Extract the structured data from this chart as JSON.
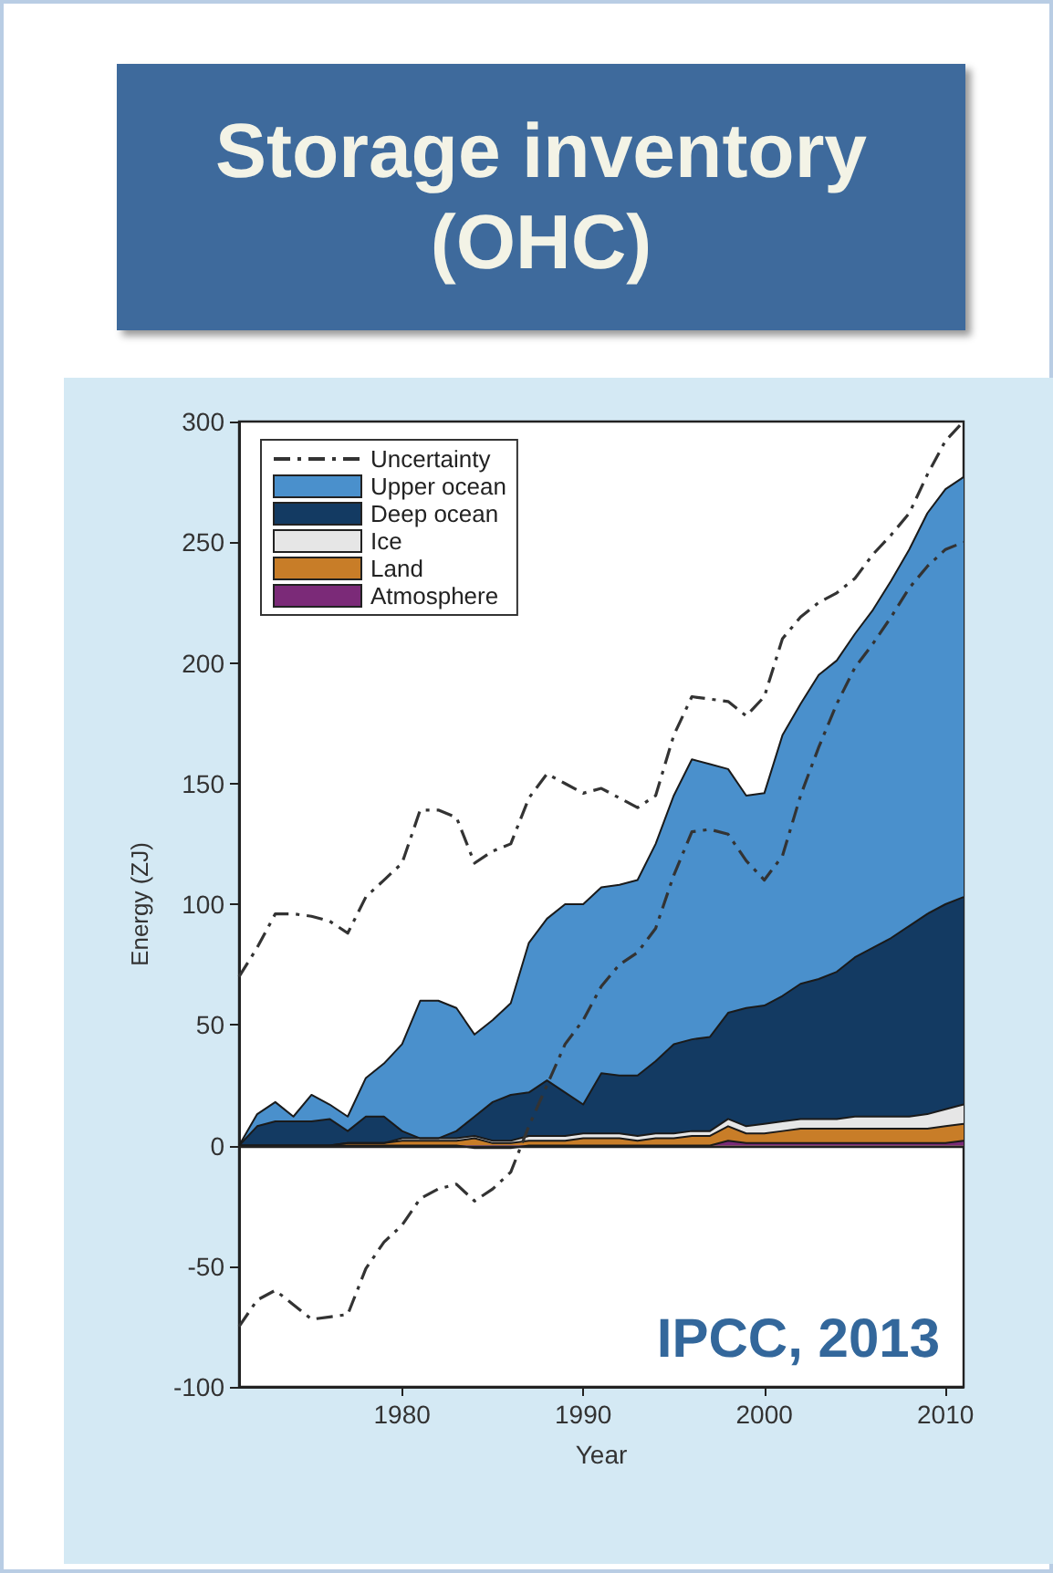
{
  "chart_data": {
    "type": "area",
    "title": "Storage inventory (OHC)",
    "xlabel": "Year",
    "ylabel": "Energy (ZJ)",
    "stacked": true,
    "grid": false,
    "legend": "top left",
    "marker": "none",
    "annotations": [
      "IPCC, 2013"
    ],
    "x": [
      1971,
      1972,
      1973,
      1974,
      1975,
      1976,
      1977,
      1978,
      1979,
      1980,
      1981,
      1982,
      1983,
      1984,
      1985,
      1986,
      1987,
      1988,
      1989,
      1990,
      1991,
      1992,
      1993,
      1994,
      1995,
      1996,
      1997,
      1998,
      1999,
      2000,
      2001,
      2002,
      2003,
      2004,
      2005,
      2006,
      2007,
      2008,
      2009,
      2010,
      2011
    ],
    "xlim": [
      1971,
      2011
    ],
    "xticks": [
      1980,
      1990,
      2000,
      2010
    ],
    "ylim": [
      -100,
      300
    ],
    "yticks": [
      -100,
      -50,
      0,
      50,
      100,
      150,
      200,
      250,
      300
    ],
    "ref_lines": [
      {
        "axis": "y",
        "value": 0,
        "color": "#222222"
      }
    ],
    "series": [
      {
        "name": "Atmosphere",
        "color": "#7b2a78",
        "values": [
          0,
          0,
          0,
          0,
          0,
          0,
          0,
          0,
          0,
          0,
          0,
          0,
          0,
          -1,
          -1,
          -1,
          0,
          0,
          0,
          0,
          0,
          0,
          0,
          0,
          0,
          0,
          0,
          2,
          1,
          1,
          1,
          1,
          1,
          1,
          1,
          1,
          1,
          1,
          1,
          1,
          2
        ]
      },
      {
        "name": "Land",
        "color": "#c87d28",
        "values": [
          0,
          0,
          0,
          0,
          0,
          0,
          1,
          1,
          1,
          2,
          2,
          2,
          2,
          3,
          1,
          1,
          2,
          2,
          2,
          3,
          3,
          3,
          2,
          3,
          3,
          4,
          4,
          6,
          4,
          4,
          5,
          6,
          6,
          6,
          6,
          6,
          6,
          6,
          6,
          7,
          7
        ]
      },
      {
        "name": "Ice",
        "color": "#e6e6e6",
        "values": [
          0,
          0,
          0,
          0,
          0,
          0,
          0,
          0,
          0,
          1,
          1,
          1,
          1,
          1,
          1,
          1,
          2,
          2,
          2,
          2,
          2,
          2,
          2,
          2,
          2,
          2,
          2,
          3,
          3,
          4,
          4,
          4,
          4,
          4,
          5,
          5,
          5,
          5,
          6,
          7,
          8
        ]
      },
      {
        "name": "Deep ocean",
        "color": "#133a62",
        "values": [
          0,
          8,
          10,
          10,
          10,
          11,
          5,
          11,
          11,
          3,
          0,
          0,
          3,
          8,
          16,
          19,
          18,
          23,
          18,
          12,
          25,
          24,
          25,
          30,
          37,
          38,
          39,
          44,
          49,
          49,
          52,
          56,
          58,
          61,
          66,
          70,
          74,
          79,
          83,
          85,
          86
        ]
      },
      {
        "name": "Upper ocean",
        "color": "#4a90cc",
        "values": [
          0,
          5,
          8,
          2,
          11,
          6,
          6,
          16,
          22,
          36,
          57,
          57,
          51,
          34,
          34,
          38,
          62,
          67,
          78,
          83,
          77,
          79,
          81,
          90,
          103,
          116,
          113,
          101,
          88,
          88,
          108,
          116,
          126,
          129,
          134,
          140,
          148,
          156,
          166,
          172,
          174
        ]
      },
      {
        "name": "Uncertainty",
        "type": "line",
        "line_style": "dashed",
        "color": "#333333",
        "values": [
          70,
          82,
          96,
          96,
          95,
          93,
          88,
          103,
          110,
          117,
          139,
          139,
          136,
          117,
          122,
          125,
          144,
          154,
          150,
          146,
          148,
          144,
          140,
          145,
          170,
          186,
          185,
          184,
          178,
          186,
          210,
          219,
          225,
          229,
          235,
          245,
          253,
          262,
          278,
          292,
          300
        ]
      },
      {
        "type": "line",
        "line_style": "dashed",
        "color": "#333333",
        "values": [
          -75,
          -64,
          -60,
          -66,
          -72,
          -71,
          -70,
          -51,
          -40,
          -33,
          -22,
          -18,
          -16,
          -23,
          -18,
          -11,
          8,
          25,
          42,
          52,
          66,
          75,
          80,
          90,
          112,
          130,
          131,
          129,
          118,
          110,
          120,
          145,
          165,
          183,
          198,
          208,
          219,
          231,
          240,
          247,
          250
        ]
      }
    ]
  }
}
